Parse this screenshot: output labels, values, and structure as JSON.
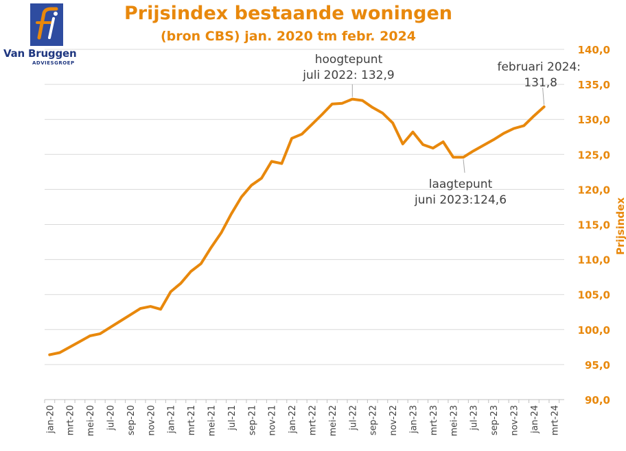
{
  "logo": {
    "name": "Van Bruggen",
    "subtitle": "ADVIESGROEP",
    "colors": {
      "box": "#2E4CA0",
      "text": "#1F3780",
      "mark": "#E8880C"
    }
  },
  "chart_data": {
    "type": "line",
    "title": "Prijsindex bestaande woningen",
    "subtitle": "(bron CBS) jan. 2020 tm febr. 2024",
    "ylabel": "Prijsindex",
    "xlabel": "",
    "ylim": [
      90,
      140
    ],
    "y_ticks": [
      "90,0",
      "95,0",
      "100,0",
      "105,0",
      "110,0",
      "115,0",
      "120,0",
      "125,0",
      "130,0",
      "135,0",
      "140,0"
    ],
    "y_axis_position": "right",
    "grid": true,
    "line_color": "#E8880C",
    "x_tick_labels": [
      "jan-20",
      "mrt-20",
      "mei-20",
      "jul-20",
      "sep-20",
      "nov-20",
      "jan-21",
      "mrt-21",
      "mei-21",
      "jul-21",
      "sep-21",
      "nov-21",
      "jan-22",
      "mrt-22",
      "mei-22",
      "jul-22",
      "sep-22",
      "nov-22",
      "jan-23",
      "mrt-23",
      "mei-23",
      "jul-23",
      "sep-23",
      "nov-23",
      "jan-24",
      "mrt-24"
    ],
    "series": [
      {
        "values": [
          96.4,
          96.7,
          97.5,
          98.3,
          99.1,
          99.4,
          100.3,
          101.2,
          102.1,
          103.0,
          103.3,
          102.9,
          105.4,
          106.6,
          108.3,
          109.4,
          111.7,
          113.8,
          116.5,
          118.9,
          120.6,
          121.6,
          124.0,
          123.7,
          127.3,
          127.9,
          129.3,
          130.7,
          132.2,
          132.3,
          132.9,
          132.7,
          131.7,
          130.9,
          129.5,
          126.5,
          128.2,
          126.4,
          125.9,
          126.8,
          124.6,
          124.6,
          125.5,
          126.3,
          127.1,
          128.0,
          128.7,
          129.1,
          130.5,
          131.8
        ]
      }
    ],
    "annotations": [
      {
        "line1": "hoogtepunt",
        "line2": "juli 2022: 132,9",
        "index": 30,
        "value": 132.9
      },
      {
        "line1": "laagtepunt",
        "line2": "juni 2023:124,6",
        "index": 41,
        "value": 124.6
      },
      {
        "line1": "februari 2024:",
        "line2": "131,8",
        "index": 49,
        "value": 131.8
      }
    ]
  }
}
